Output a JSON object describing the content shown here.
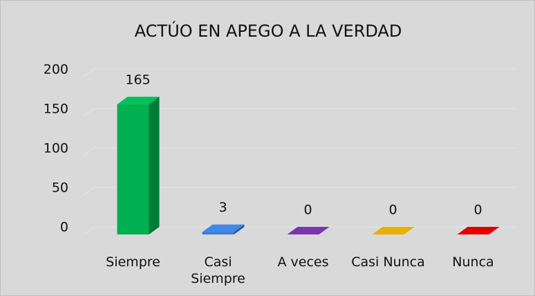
{
  "chart_data": {
    "type": "bar3d",
    "title": "ACTÚO EN APEGO A LA VERDAD",
    "categories": [
      "Siempre",
      "Casi Siempre",
      "A veces",
      "Casi Nunca",
      "Nunca"
    ],
    "values": [
      165,
      3,
      0,
      0,
      0
    ],
    "colors": [
      "#00b050",
      "#3a7bd5",
      "#7030a0",
      "#d4a000",
      "#d00000"
    ],
    "ylim": [
      0,
      200
    ],
    "yticks": [
      0,
      50,
      100,
      150,
      200
    ],
    "grid": true
  }
}
